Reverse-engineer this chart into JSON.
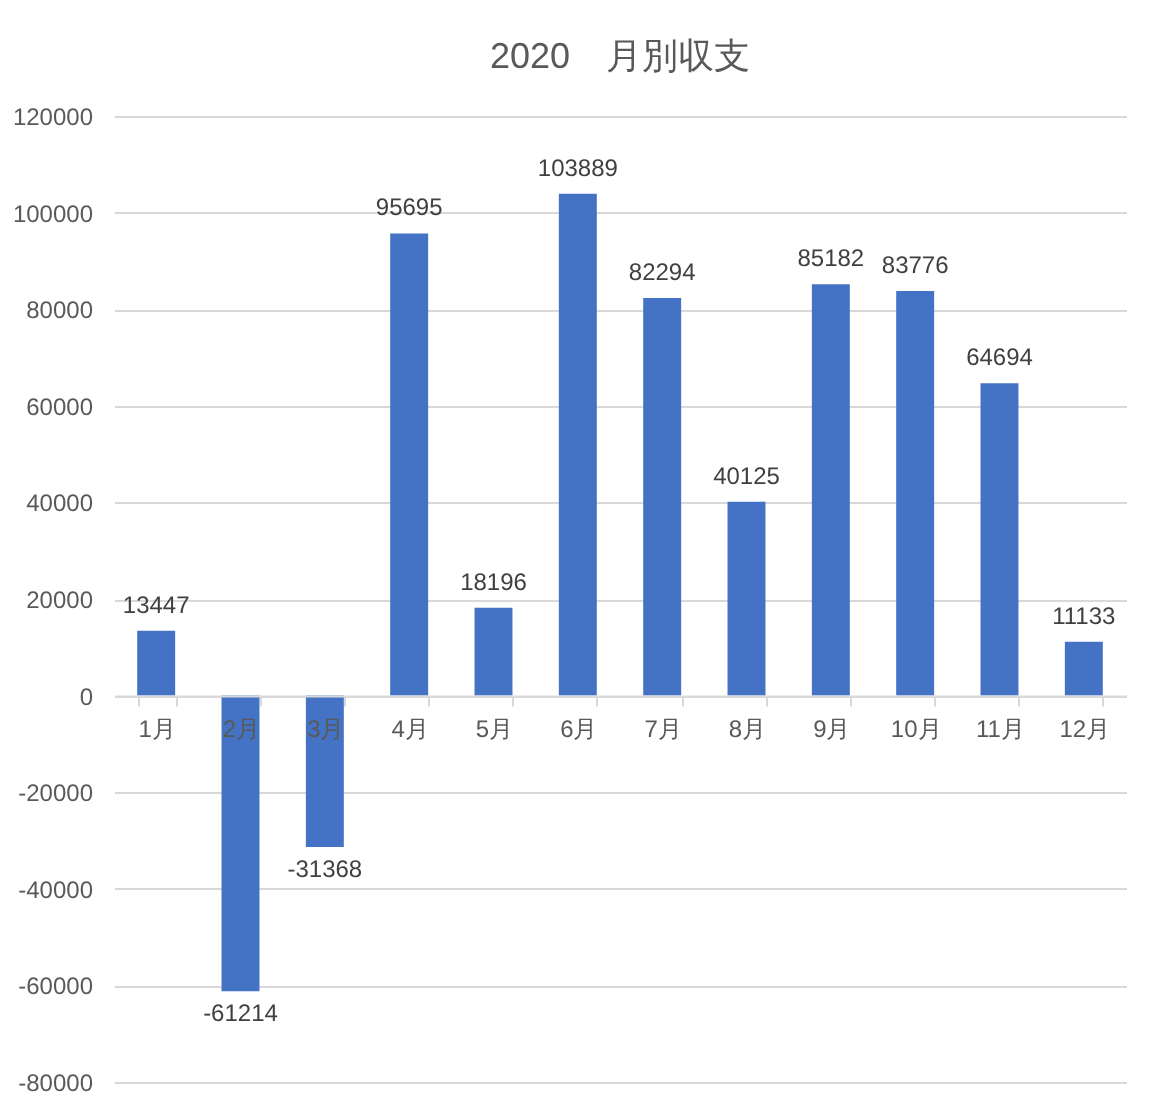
{
  "chart_data": {
    "type": "bar",
    "title": "2020　月別収支",
    "categories": [
      "1月",
      "2月",
      "3月",
      "4月",
      "5月",
      "6月",
      "7月",
      "8月",
      "9月",
      "10月",
      "11月",
      "12月"
    ],
    "values": [
      13447,
      -61214,
      -31368,
      95695,
      18196,
      103889,
      82294,
      40125,
      85182,
      83776,
      64694,
      11133
    ],
    "color": "#4472c4",
    "ylim": [
      -80000,
      120000
    ],
    "yticks": [
      -80000,
      -60000,
      -40000,
      -20000,
      0,
      20000,
      40000,
      60000,
      80000,
      100000,
      120000
    ],
    "grid": "y",
    "data_labels": true
  }
}
